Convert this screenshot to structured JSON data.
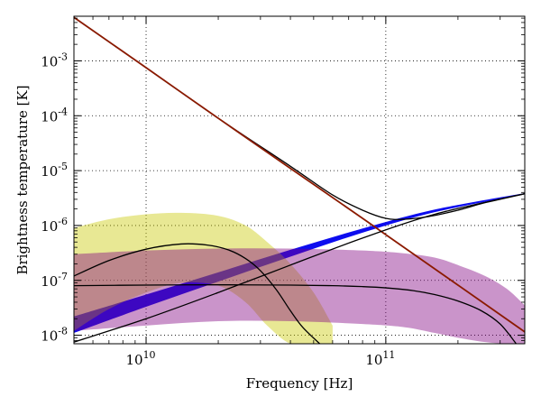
{
  "chart_data": {
    "type": "line",
    "title": "",
    "xlabel": "Frequency [Hz]",
    "ylabel": "Brightness temperature [K]",
    "xscale": "log",
    "yscale": "log",
    "xlim": [
      5000000000.0,
      380000000000.0
    ],
    "ylim": [
      7e-09,
      0.0065
    ],
    "grid": true,
    "grid_style": "dotted",
    "x_ticks": [
      {
        "value": 10000000000.0,
        "label": "10",
        "exp": "10"
      },
      {
        "value": 100000000000.0,
        "label": "10",
        "exp": "11"
      }
    ],
    "y_ticks": [
      {
        "value": 1e-08,
        "label": "10",
        "exp": "-8"
      },
      {
        "value": 1e-07,
        "label": "10",
        "exp": "-7"
      },
      {
        "value": 1e-06,
        "label": "10",
        "exp": "-6"
      },
      {
        "value": 1e-05,
        "label": "10",
        "exp": "-5"
      },
      {
        "value": 0.0001,
        "label": "10",
        "exp": "-4"
      },
      {
        "value": 0.001,
        "label": "10",
        "exp": "-3"
      }
    ],
    "series": [
      {
        "color": "#000000",
        "style": "line",
        "x": [
          5000000000.0,
          10000000000.0,
          20000000000.0,
          40000000000.0,
          60000000000.0,
          80000000000.0,
          100000000000.0,
          120000000000.0,
          150000000000.0,
          200000000000.0,
          250000000000.0,
          300000000000.0,
          380000000000.0
        ],
        "y": [
          0.0062,
          0.00075,
          9e-05,
          1.2e-05,
          3.6e-06,
          1.9e-06,
          1.35e-06,
          1.3e-06,
          1.45e-06,
          1.9e-06,
          2.5e-06,
          3e-06,
          3.8e-06
        ]
      },
      {
        "color": "#8b1a00",
        "style": "line",
        "x": [
          5000000000.0,
          10000000000.0,
          20000000000.0,
          40000000000.0,
          80000000000.0,
          100000000000.0,
          200000000000.0,
          380000000000.0
        ],
        "y": [
          0.0062,
          0.00075,
          9e-05,
          1.1e-05,
          1.35e-06,
          6.8e-07,
          8.2e-08,
          1.15e-08
        ]
      },
      {
        "color": "#0000ee",
        "style": "band",
        "x": [
          5000000000.0,
          10000000000.0,
          20000000000.0,
          40000000000.0,
          80000000000.0,
          160000000000.0,
          380000000000.0
        ],
        "y_low": [
          1.1e-08,
          3.3e-08,
          9.5e-08,
          2.7e-07,
          7.4e-07,
          1.75e-06,
          3.7e-06
        ],
        "y_high": [
          2.2e-08,
          5.5e-08,
          1.4e-07,
          3.6e-07,
          8.8e-07,
          1.95e-06,
          3.9e-06
        ]
      },
      {
        "color": "#000000",
        "style": "line",
        "x": [
          5000000000.0,
          10000000000.0,
          20000000000.0,
          40000000000.0,
          80000000000.0,
          160000000000.0,
          380000000000.0
        ],
        "y": [
          7.5e-09,
          2e-08,
          6e-08,
          1.9e-07,
          5.9e-07,
          1.6e-06,
          3.8e-06
        ]
      },
      {
        "color": "#c8c800",
        "style": "band",
        "x": [
          5000000000.0,
          7000000000.0,
          10000000000.0,
          14000000000.0,
          20000000000.0,
          26000000000.0,
          32000000000.0,
          40000000000.0,
          50000000000.0,
          60000000000.0
        ],
        "y_low": [
          1.2e-08,
          3e-08,
          6e-08,
          9e-08,
          8e-08,
          4e-08,
          1.5e-08,
          7e-09,
          7e-09,
          7e-09
        ],
        "y_high": [
          9e-07,
          1.3e-06,
          1.6e-06,
          1.7e-06,
          1.5e-06,
          1e-06,
          5e-07,
          2e-07,
          6e-08,
          1.5e-08
        ]
      },
      {
        "color": "#000000",
        "style": "line",
        "x": [
          5000000000.0,
          7000000000.0,
          10000000000.0,
          14000000000.0,
          18000000000.0,
          22000000000.0,
          26000000000.0,
          30000000000.0,
          35000000000.0,
          40000000000.0,
          45000000000.0,
          53000000000.0
        ],
        "y": [
          1.2e-07,
          2.3e-07,
          3.7e-07,
          4.6e-07,
          4.4e-07,
          3.6e-07,
          2.5e-07,
          1.5e-07,
          6.7e-08,
          2.8e-08,
          1.4e-08,
          7e-09
        ]
      },
      {
        "color": "#800080",
        "style": "band",
        "x": [
          5000000000.0,
          10000000000.0,
          20000000000.0,
          40000000000.0,
          80000000000.0,
          120000000000.0,
          160000000000.0,
          200000000000.0,
          260000000000.0,
          320000000000.0,
          380000000000.0
        ],
        "y_low": [
          1.2e-08,
          1.5e-08,
          1.8e-08,
          1.8e-08,
          1.6e-08,
          1.4e-08,
          1.1e-08,
          9e-09,
          7.5e-09,
          7e-09,
          7e-09
        ],
        "y_high": [
          3e-07,
          3.5e-07,
          3.8e-07,
          3.8e-07,
          3.5e-07,
          3.1e-07,
          2.6e-07,
          1.9e-07,
          1.2e-07,
          7e-08,
          3.5e-08
        ]
      },
      {
        "color": "#000000",
        "style": "line",
        "x": [
          5000000000.0,
          10000000000.0,
          20000000000.0,
          40000000000.0,
          60000000000.0,
          80000000000.0,
          100000000000.0,
          130000000000.0,
          160000000000.0,
          200000000000.0,
          250000000000.0,
          300000000000.0,
          350000000000.0
        ],
        "y": [
          8e-08,
          8.2e-08,
          8.3e-08,
          8.2e-08,
          8e-08,
          7.7e-08,
          7.3e-08,
          6.5e-08,
          5.5e-08,
          4.2e-08,
          2.8e-08,
          1.6e-08,
          7e-09
        ]
      }
    ]
  }
}
